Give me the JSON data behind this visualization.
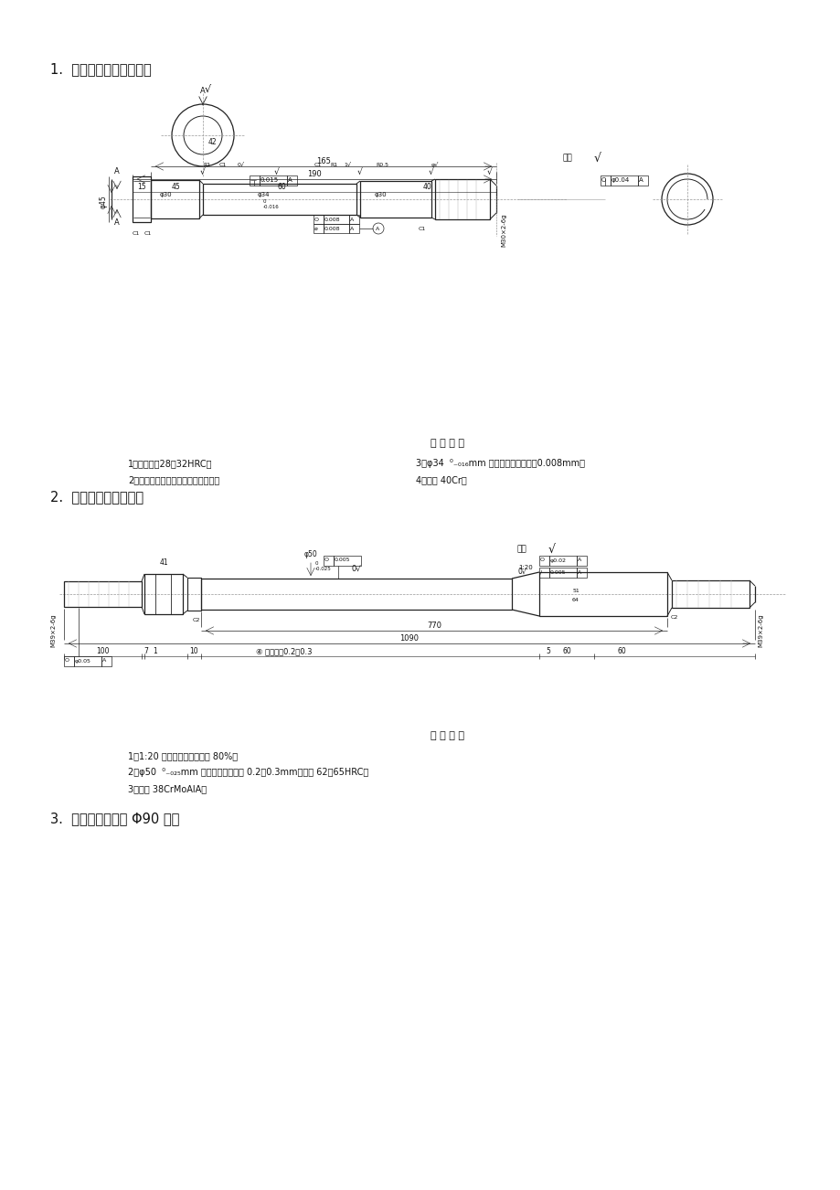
{
  "bg_color": "#ffffff",
  "page_width": 9.2,
  "page_height": 13.02,
  "item1_title": "1.  连杆螺钉，毛坏为锻件",
  "item2_title": "2.  活塞杆，毛坏为锻件",
  "item3_title": "3.  输出轴，毛坏为 Φ90 棒料",
  "tech_req1_header": "技 术 要 求",
  "tech_req1_l1a": "1．调质处礈28－32HRC。",
  "tech_req1_l1b": "3．φ34  ⁰₋₀₁₆mm 圆度、圆柱度公差为0.008mm。",
  "tech_req1_l2a": "2．磁粉探伤，无裂纹，夹渣等缺陋。",
  "tech_req1_l2b": "4．材料 40Cr。",
  "tech_req2_header": "技 术 要 求",
  "tech_req2_l1": "1．1:20 锥度接触面积不少于 80%。",
  "tech_req2_l2": "2．φ50  ⁰₋₀₂₅mm 部分氮化层深度为 0.2－0.3mm，硬度 62－65HRC。",
  "tech_req2_l3": "3．材料 38CrMoAlA。"
}
